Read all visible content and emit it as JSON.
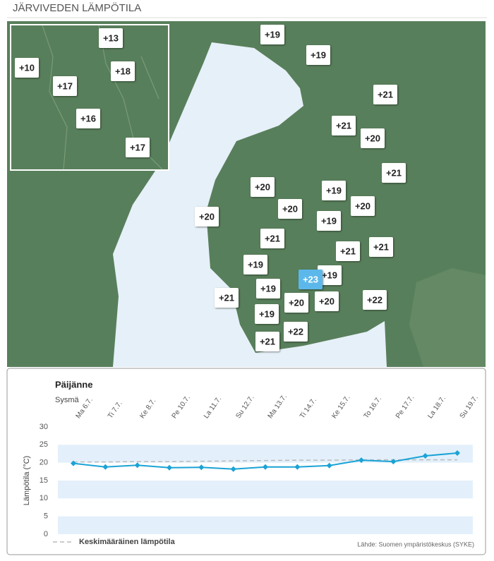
{
  "title": "JÄRVIVEDEN LÄMPÖTILA",
  "map": {
    "labels": [
      "+13",
      "+10",
      "+18",
      "+17",
      "+16",
      "+17",
      "+19",
      "+19",
      "+21",
      "+21",
      "+20",
      "+21",
      "+20",
      "+19",
      "+20",
      "+20",
      "+20",
      "+19",
      "+21",
      "+21",
      "+21",
      "+19",
      "+19",
      "+21",
      "+19",
      "+20",
      "+20",
      "+22",
      "+19",
      "+22",
      "+21",
      "+23"
    ],
    "selected": 31
  },
  "chart_data": {
    "type": "line",
    "title": "Päijänne",
    "subtitle": "Sysmä",
    "categories": [
      "Ma 6.7.",
      "Ti 7.7.",
      "Ke 8.7.",
      "Pe 10.7.",
      "La 11.7.",
      "Su 12.7.",
      "Ma 13.7.",
      "Ti 14.7.",
      "Ke 15.7.",
      "To 16.7.",
      "Pe 17.7.",
      "La 18.7.",
      "Su 19.7."
    ],
    "series": [
      {
        "color": "#1aa3d6",
        "values": [
          19.8,
          18.8,
          19.3,
          18.6,
          18.7,
          18.2,
          18.8,
          18.8,
          19.2,
          20.7,
          20.3,
          21.9,
          22.7
        ]
      },
      {
        "name": "Keskimääräinen lämpötila",
        "color": "#bbbbbb",
        "dashed": true,
        "values": [
          20.2,
          20.2,
          20.3,
          20.3,
          20.4,
          20.5,
          20.6,
          20.7,
          20.7,
          20.8,
          20.8,
          20.8,
          20.8
        ]
      }
    ],
    "ylabel": "Lämpötila (°C)",
    "ylim": [
      0,
      30
    ],
    "yticks": [
      0,
      5,
      10,
      15,
      20,
      25,
      30
    ],
    "source": "Lähde: Suomen ympäristökeskus (SYKE)"
  }
}
